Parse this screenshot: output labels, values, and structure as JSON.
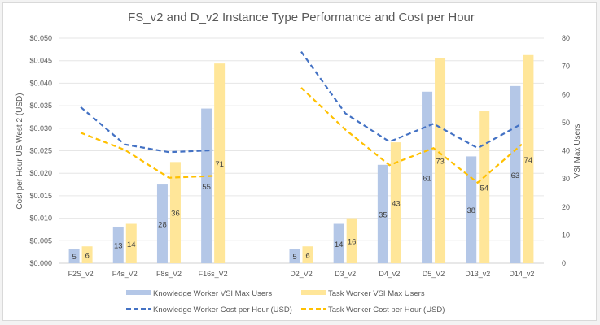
{
  "chart_data": {
    "type": "bar",
    "title": "FS_v2 and D_v2 Instance Type Performance and Cost per Hour",
    "categories": [
      "F2S_v2",
      "F4s_V2",
      "F8s_V2",
      "F16s_V2",
      "",
      "D2_V2",
      "D3_v2",
      "D4_v2",
      "D5_V2",
      "D13_v2",
      "D14_v2"
    ],
    "ylabel": "Cost per Hour US West 2 (USD)",
    "y2label": "VSI Max Users",
    "ylim": [
      0,
      0.05
    ],
    "y2lim": [
      0,
      80
    ],
    "yticks": [
      "$0.000",
      "$0.005",
      "$0.010",
      "$0.015",
      "$0.020",
      "$0.025",
      "$0.030",
      "$0.035",
      "$0.040",
      "$0.045",
      "$0.050"
    ],
    "y2ticks": [
      "0",
      "10",
      "20",
      "30",
      "40",
      "50",
      "60",
      "70",
      "80"
    ],
    "grid": true,
    "legend_position": "bottom",
    "series": [
      {
        "name": "Knowledge Worker VSI Max Users",
        "kind": "bar",
        "axis": "right",
        "color": "#b4c7e7",
        "values": [
          5,
          13,
          28,
          55,
          null,
          5,
          14,
          35,
          61,
          38,
          63
        ]
      },
      {
        "name": "Task Worker VSI Max Users",
        "kind": "bar",
        "axis": "right",
        "color": "#ffe699",
        "values": [
          6,
          14,
          36,
          71,
          null,
          6,
          16,
          43,
          73,
          54,
          74
        ]
      },
      {
        "name": "Knowledge Worker Cost per Hour (USD)",
        "kind": "line-dashed",
        "axis": "left",
        "color": "#4472c4",
        "values": [
          0.0347,
          0.0264,
          0.0247,
          0.0251,
          null,
          0.047,
          0.0333,
          0.027,
          0.031,
          0.0256,
          0.031
        ]
      },
      {
        "name": "Task Worker Cost per Hour (USD)",
        "kind": "line-dashed",
        "axis": "left",
        "color": "#ffc000",
        "values": [
          0.029,
          0.0252,
          0.019,
          0.0194,
          null,
          0.039,
          0.0297,
          0.0218,
          0.0256,
          0.0179,
          0.0264
        ]
      }
    ]
  }
}
